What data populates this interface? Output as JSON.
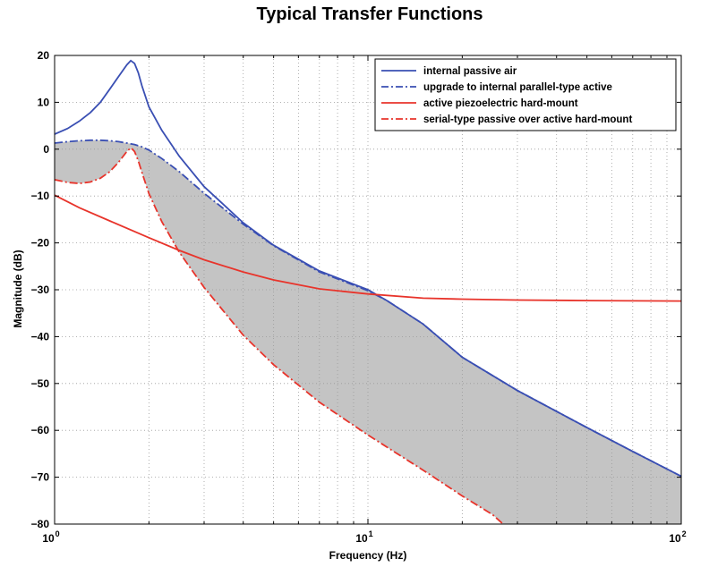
{
  "chart_data": {
    "type": "line",
    "title": "Typical Transfer Functions",
    "xlabel": "Frequency (Hz)",
    "ylabel": "Magnitude (dB)",
    "xscale": "log",
    "xlim": [
      1,
      100
    ],
    "ylim": [
      -80,
      20
    ],
    "x_ticks": [
      {
        "base": "10",
        "exp": "0"
      },
      {
        "base": "10",
        "exp": "1"
      },
      {
        "base": "10",
        "exp": "2"
      }
    ],
    "y_ticks": [
      "20",
      "10",
      "0",
      "-10",
      "-20",
      "-30",
      "-40",
      "-50",
      "-60",
      "-70",
      "-80"
    ],
    "grid": true,
    "legend_position": "top-right",
    "shaded_region": {
      "between": [
        "upgrade to internal parallel-type active",
        "serial-type passive over active hard-mount"
      ],
      "color": "#c4c4c4"
    },
    "series": [
      {
        "name": "internal passive air",
        "color": "#3a4fb3",
        "style": "solid",
        "x": [
          1,
          1.1,
          1.2,
          1.3,
          1.4,
          1.5,
          1.6,
          1.7,
          1.75,
          1.8,
          1.85,
          1.9,
          2.0,
          2.2,
          2.5,
          3,
          4,
          5,
          7,
          10,
          11.5,
          15,
          20,
          30,
          50,
          70,
          100
        ],
        "y": [
          3.2,
          4.4,
          6.0,
          7.8,
          10.0,
          12.8,
          15.5,
          18.0,
          18.9,
          18.3,
          16.3,
          13.5,
          9.0,
          4.0,
          -1.5,
          -8.0,
          -15.7,
          -20.5,
          -26.0,
          -30.0,
          -32.3,
          -37.3,
          -44.4,
          -51.5,
          -59.4,
          -64.5,
          -69.8
        ]
      },
      {
        "name": "upgrade to internal parallel-type active",
        "color": "#3a4fb3",
        "style": "dash-dot",
        "x": [
          1,
          1.1,
          1.2,
          1.3,
          1.4,
          1.5,
          1.6,
          1.7,
          1.8,
          1.9,
          2.0,
          2.2,
          2.5,
          3,
          4,
          5,
          7,
          10,
          11.5,
          15,
          20,
          30,
          50,
          70,
          100
        ],
        "y": [
          1.3,
          1.6,
          1.8,
          1.9,
          1.9,
          1.8,
          1.6,
          1.3,
          1.0,
          0.5,
          -0.2,
          -2.0,
          -4.8,
          -9.4,
          -16.0,
          -20.6,
          -26.2,
          -30.2,
          -32.3,
          -37.3,
          -44.4,
          -51.5,
          -59.4,
          -64.5,
          -69.8
        ]
      },
      {
        "name": "active piezoelectric hard-mount",
        "color": "#e8342b",
        "style": "solid",
        "x": [
          1,
          1.2,
          1.5,
          2,
          2.5,
          3,
          4,
          5,
          7,
          10,
          15,
          20,
          30,
          50,
          100
        ],
        "y": [
          -9.8,
          -12.5,
          -15.3,
          -18.9,
          -21.6,
          -23.6,
          -26.2,
          -27.9,
          -29.8,
          -30.9,
          -31.8,
          -32.0,
          -32.2,
          -32.3,
          -32.4
        ]
      },
      {
        "name": "serial-type passive over active hard-mount",
        "color": "#e8342b",
        "style": "dash-dot",
        "x": [
          1,
          1.1,
          1.2,
          1.3,
          1.4,
          1.5,
          1.6,
          1.7,
          1.75,
          1.8,
          1.85,
          1.9,
          2.0,
          2.2,
          2.5,
          3,
          4,
          5,
          7,
          10,
          15,
          20,
          25,
          27
        ],
        "y": [
          -6.5,
          -7.1,
          -7.3,
          -7.0,
          -6.2,
          -4.8,
          -2.8,
          -0.5,
          0.3,
          -0.5,
          -2.5,
          -5.0,
          -9.5,
          -15.5,
          -22.0,
          -29.5,
          -39.7,
          -46.0,
          -54.0,
          -61.0,
          -68.5,
          -74.0,
          -78.0,
          -80.0
        ]
      }
    ]
  }
}
